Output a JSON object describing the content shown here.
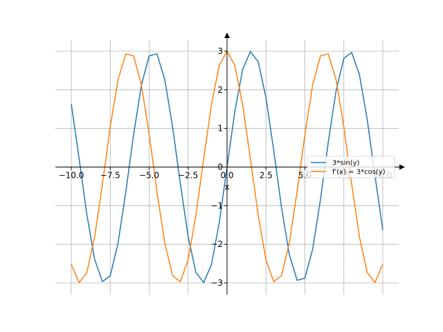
{
  "chart_data": {
    "type": "line",
    "title": "",
    "xlabel": "x",
    "ylabel": "",
    "xlim": [
      -10,
      10
    ],
    "ylim": [
      -3,
      3
    ],
    "grid": true,
    "legend_position": "right",
    "x_ticks": [
      -10.0,
      -7.5,
      -5.0,
      -2.5,
      0.0,
      2.5,
      5.0,
      7.5,
      10.0
    ],
    "x_tick_labels": [
      "−10.0",
      "−7.5",
      "−5.0",
      "−2.5",
      "0.0",
      "2.5",
      "5.0",
      "7.5",
      "10.0"
    ],
    "y_ticks": [
      -3,
      -2,
      -1,
      0,
      1,
      2,
      3
    ],
    "y_tick_labels": [
      "−3",
      "−2",
      "−1",
      "0",
      "1",
      "2",
      "3"
    ],
    "series": [
      {
        "name": "3*sin(y)",
        "color": "#1f77b4",
        "x": [
          -10,
          -9.5,
          -9,
          -8.5,
          -8,
          -7.5,
          -7,
          -6.5,
          -6,
          -5.5,
          -5,
          -4.5,
          -4,
          -3.5,
          -3,
          -2.5,
          -2,
          -1.5,
          -1,
          -0.5,
          0,
          0.5,
          1,
          1.5,
          2,
          2.5,
          3,
          3.5,
          4,
          4.5,
          5,
          5.5,
          6,
          6.5,
          7,
          7.5,
          8,
          8.5,
          9,
          9.5,
          10
        ],
        "values": [
          1.632,
          0.225,
          -1.236,
          -2.394,
          -2.968,
          -2.814,
          -1.971,
          -0.646,
          0.838,
          2.121,
          2.877,
          2.932,
          2.27,
          1.052,
          -0.423,
          -1.795,
          -2.728,
          -2.992,
          -2.524,
          -1.438,
          0,
          1.438,
          2.524,
          2.992,
          2.728,
          1.795,
          0.423,
          -1.052,
          -2.27,
          -2.932,
          -2.877,
          -2.121,
          -0.838,
          0.646,
          1.971,
          2.814,
          2.968,
          2.394,
          1.236,
          -0.225,
          -1.632
        ]
      },
      {
        "name": "f'(x) = 3*cos(y)",
        "color": "#ff7f0e",
        "x": [
          -10,
          -9.5,
          -9,
          -8.5,
          -8,
          -7.5,
          -7,
          -6.5,
          -6,
          -5.5,
          -5,
          -4.5,
          -4,
          -3.5,
          -3,
          -2.5,
          -2,
          -1.5,
          -1,
          -0.5,
          0,
          0.5,
          1,
          1.5,
          2,
          2.5,
          3,
          3.5,
          4,
          4.5,
          5,
          5.5,
          6,
          6.5,
          7,
          7.5,
          8,
          8.5,
          9,
          9.5,
          10
        ],
        "values": [
          -2.517,
          -2.992,
          -2.733,
          -1.806,
          -0.437,
          1.04,
          2.262,
          2.929,
          2.881,
          2.131,
          0.851,
          -0.633,
          -1.961,
          -2.809,
          -2.97,
          -2.403,
          -1.248,
          0.212,
          1.621,
          2.633,
          3,
          2.633,
          1.621,
          0.212,
          -1.248,
          -2.403,
          -2.97,
          -2.809,
          -1.961,
          -0.633,
          0.851,
          2.131,
          2.881,
          2.929,
          2.262,
          1.04,
          -0.437,
          -1.806,
          -2.733,
          -2.992,
          -2.517
        ]
      }
    ]
  }
}
